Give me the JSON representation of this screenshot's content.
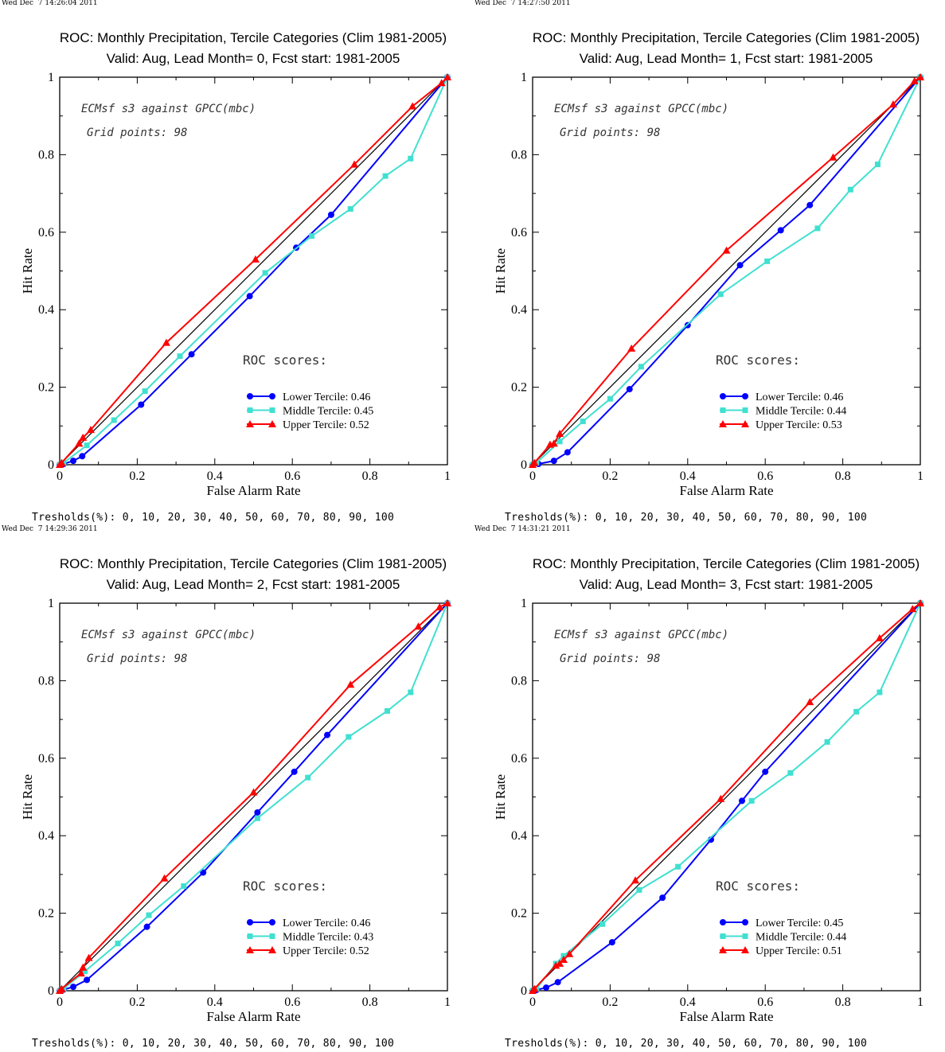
{
  "thresholds": "Tresholds(%): 0, 10, 20, 30, 40, 50, 60, 70, 80, 90, 100",
  "colors": {
    "lower": "#0000ff",
    "middle": "#40e0d0",
    "upper": "#ff0000",
    "diagonal": "#000000"
  },
  "chart_data": [
    {
      "type": "line",
      "timestamp": "Wed Dec  7 14:26:04 2011",
      "title": "ROC: Monthly Precipitation, Tercile Categories (Clim 1981-2005)",
      "subtitle": "Valid: Aug, Lead Month= 0, Fcst start: 1981-2005",
      "xlabel": "False Alarm Rate",
      "ylabel": "Hit Rate",
      "xlim": [
        0,
        1
      ],
      "ylim": [
        0,
        1
      ],
      "x_ticks": [
        "0",
        "0.2",
        "0.4",
        "0.6",
        "0.8",
        "1"
      ],
      "y_ticks": [
        "0",
        "0.2",
        "0.4",
        "0.6",
        "0.8",
        "1"
      ],
      "annotation_source": "ECMsf s3 against GPCC(mbc)",
      "annotation_grid": "Grid points:   98",
      "scores_heading": "ROC scores:",
      "series": [
        {
          "name": "Lower Tercile: 0.46",
          "marker": "circle",
          "x": [
            0,
            0.01,
            0.035,
            0.058,
            0.21,
            0.34,
            0.49,
            0.61,
            0.7,
            1
          ],
          "y": [
            0,
            0.002,
            0.01,
            0.022,
            0.155,
            0.285,
            0.435,
            0.56,
            0.645,
            1
          ]
        },
        {
          "name": "Middle Tercile: 0.45",
          "marker": "square",
          "x": [
            0,
            0.01,
            0.07,
            0.14,
            0.22,
            0.31,
            0.53,
            0.65,
            0.75,
            0.84,
            0.905,
            1
          ],
          "y": [
            0,
            0.005,
            0.05,
            0.115,
            0.19,
            0.28,
            0.495,
            0.59,
            0.66,
            0.745,
            0.79,
            1
          ]
        },
        {
          "name": "Upper Tercile: 0.52",
          "marker": "triangle",
          "x": [
            0,
            0.005,
            0.05,
            0.06,
            0.08,
            0.275,
            0.505,
            0.76,
            0.91,
            0.985,
            1
          ],
          "y": [
            0,
            0.005,
            0.055,
            0.07,
            0.09,
            0.315,
            0.53,
            0.775,
            0.925,
            0.985,
            1
          ]
        }
      ]
    },
    {
      "type": "line",
      "timestamp": "Wed Dec  7 14:27:50 2011",
      "title": "ROC: Monthly Precipitation, Tercile Categories (Clim 1981-2005)",
      "subtitle": "Valid: Aug, Lead Month= 1, Fcst start: 1981-2005",
      "xlabel": "False Alarm Rate",
      "ylabel": "Hit Rate",
      "xlim": [
        0,
        1
      ],
      "ylim": [
        0,
        1
      ],
      "x_ticks": [
        "0",
        "0.2",
        "0.4",
        "0.6",
        "0.8",
        "1"
      ],
      "y_ticks": [
        "0",
        "0.2",
        "0.4",
        "0.6",
        "0.8",
        "1"
      ],
      "annotation_source": "ECMsf s3 against GPCC(mbc)",
      "annotation_grid": "Grid points:   98",
      "scores_heading": "ROC scores:",
      "series": [
        {
          "name": "Lower Tercile: 0.46",
          "marker": "circle",
          "x": [
            0,
            0.015,
            0.055,
            0.09,
            0.25,
            0.4,
            0.535,
            0.64,
            0.715,
            1
          ],
          "y": [
            0,
            0.002,
            0.01,
            0.032,
            0.195,
            0.36,
            0.515,
            0.605,
            0.67,
            1
          ]
        },
        {
          "name": "Middle Tercile: 0.44",
          "marker": "square",
          "x": [
            0,
            0.01,
            0.07,
            0.13,
            0.2,
            0.28,
            0.485,
            0.605,
            0.735,
            0.82,
            0.89,
            1
          ],
          "y": [
            0,
            0.005,
            0.06,
            0.112,
            0.17,
            0.253,
            0.44,
            0.525,
            0.61,
            0.71,
            0.775,
            1
          ]
        },
        {
          "name": "Upper Tercile: 0.53",
          "marker": "triangle",
          "x": [
            0,
            0.005,
            0.045,
            0.055,
            0.07,
            0.255,
            0.5,
            0.775,
            0.93,
            0.985,
            1
          ],
          "y": [
            0,
            0.005,
            0.052,
            0.055,
            0.08,
            0.3,
            0.553,
            0.793,
            0.93,
            0.99,
            1
          ]
        }
      ]
    },
    {
      "type": "line",
      "timestamp": "Wed Dec  7 14:29:36 2011",
      "title": "ROC: Monthly Precipitation, Tercile Categories (Clim 1981-2005)",
      "subtitle": "Valid: Aug, Lead Month= 2, Fcst start: 1981-2005",
      "xlabel": "False Alarm Rate",
      "ylabel": "Hit Rate",
      "xlim": [
        0,
        1
      ],
      "ylim": [
        0,
        1
      ],
      "x_ticks": [
        "0",
        "0.2",
        "0.4",
        "0.6",
        "0.8",
        "1"
      ],
      "y_ticks": [
        "0",
        "0.2",
        "0.4",
        "0.6",
        "0.8",
        "1"
      ],
      "annotation_source": "ECMsf s3 against GPCC(mbc)",
      "annotation_grid": "Grid points:   98",
      "scores_heading": "ROC scores:",
      "series": [
        {
          "name": "Lower Tercile: 0.46",
          "marker": "circle",
          "x": [
            0,
            0.01,
            0.035,
            0.07,
            0.225,
            0.37,
            0.51,
            0.605,
            0.69,
            1
          ],
          "y": [
            0,
            0.003,
            0.01,
            0.028,
            0.165,
            0.305,
            0.46,
            0.565,
            0.66,
            1
          ]
        },
        {
          "name": "Middle Tercile: 0.43",
          "marker": "square",
          "x": [
            0,
            0.01,
            0.065,
            0.15,
            0.23,
            0.32,
            0.51,
            0.64,
            0.745,
            0.845,
            0.905,
            1
          ],
          "y": [
            0,
            0.005,
            0.05,
            0.122,
            0.195,
            0.27,
            0.445,
            0.55,
            0.655,
            0.722,
            0.77,
            1
          ]
        },
        {
          "name": "Upper Tercile: 0.52",
          "marker": "triangle",
          "x": [
            0,
            0.005,
            0.055,
            0.06,
            0.075,
            0.27,
            0.5,
            0.75,
            0.925,
            0.98,
            1
          ],
          "y": [
            0,
            0.005,
            0.045,
            0.06,
            0.085,
            0.29,
            0.512,
            0.79,
            0.94,
            0.99,
            1
          ]
        }
      ]
    },
    {
      "type": "line",
      "timestamp": "Wed Dec  7 14:31:21 2011",
      "title": "ROC: Monthly Precipitation, Tercile Categories (Clim 1981-2005)",
      "subtitle": "Valid: Aug, Lead Month= 3, Fcst start: 1981-2005",
      "xlabel": "False Alarm Rate",
      "ylabel": "Hit Rate",
      "xlim": [
        0,
        1
      ],
      "ylim": [
        0,
        1
      ],
      "x_ticks": [
        "0",
        "0.2",
        "0.4",
        "0.6",
        "0.8",
        "1"
      ],
      "y_ticks": [
        "0",
        "0.2",
        "0.4",
        "0.6",
        "0.8",
        "1"
      ],
      "annotation_source": "ECMsf s3 against GPCC(mbc)",
      "annotation_grid": "Grid points:   98",
      "scores_heading": "ROC scores:",
      "series": [
        {
          "name": "Lower Tercile: 0.45",
          "marker": "circle",
          "x": [
            0,
            0.01,
            0.035,
            0.065,
            0.205,
            0.335,
            0.46,
            0.54,
            0.6,
            1
          ],
          "y": [
            0,
            0.002,
            0.008,
            0.022,
            0.125,
            0.24,
            0.39,
            0.49,
            0.565,
            1
          ]
        },
        {
          "name": "Middle Tercile: 0.44",
          "marker": "square",
          "x": [
            0,
            0.01,
            0.06,
            0.08,
            0.18,
            0.275,
            0.375,
            0.565,
            0.665,
            0.76,
            0.835,
            0.895,
            1
          ],
          "y": [
            0,
            0.005,
            0.07,
            0.09,
            0.172,
            0.26,
            0.32,
            0.49,
            0.562,
            0.642,
            0.72,
            0.77,
            1
          ]
        },
        {
          "name": "Upper Tercile: 0.51",
          "marker": "triangle",
          "x": [
            0,
            0.005,
            0.06,
            0.07,
            0.08,
            0.095,
            0.265,
            0.485,
            0.715,
            0.895,
            0.98,
            1
          ],
          "y": [
            0,
            0.005,
            0.065,
            0.07,
            0.08,
            0.095,
            0.285,
            0.495,
            0.745,
            0.91,
            0.985,
            1
          ]
        }
      ]
    }
  ]
}
